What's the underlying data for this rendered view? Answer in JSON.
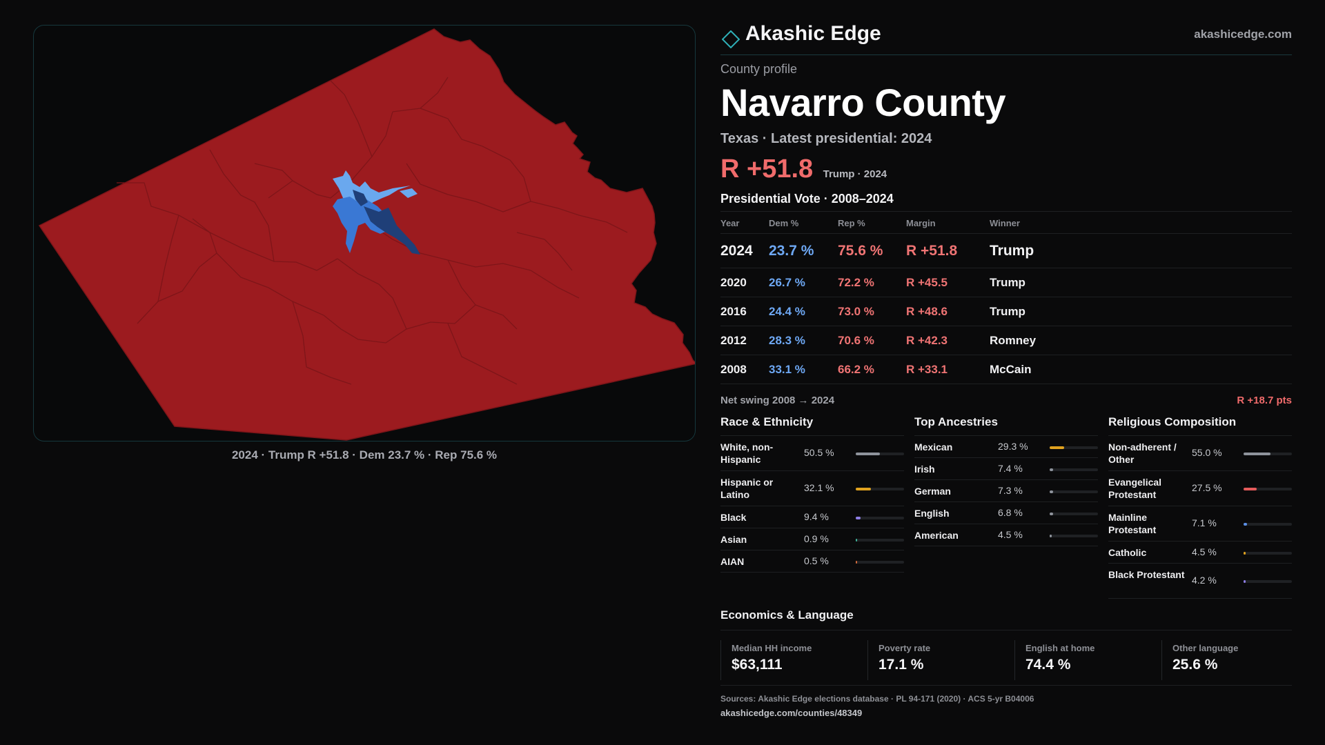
{
  "brand": {
    "name": "Akashic Edge",
    "site": "akashicedge.com"
  },
  "map": {
    "caption": "2024 · Trump R +51.8 · Dem 23.7 % · Rep 75.6 %",
    "colors": {
      "rep": "#9c1b1f",
      "dem_light": "#6aa8ee",
      "dem_mid": "#3a78d4",
      "dem_dark": "#1f3f78",
      "border": "#7e1519"
    }
  },
  "profile": {
    "eyebrow": "County profile",
    "county": "Navarro County",
    "subline": "Texas · Latest presidential: 2024",
    "margin": "R +51.8",
    "margin_sub": "Trump · 2024"
  },
  "votes": {
    "title": "Presidential Vote · 2008–2024",
    "headers": {
      "year": "Year",
      "dem": "Dem %",
      "rep": "Rep %",
      "margin": "Margin",
      "winner": "Winner"
    },
    "rows": [
      {
        "year": "2024",
        "dem": "23.7 %",
        "rep": "75.6 %",
        "margin": "R +51.8",
        "winner": "Trump"
      },
      {
        "year": "2020",
        "dem": "26.7 %",
        "rep": "72.2 %",
        "margin": "R +45.5",
        "winner": "Trump"
      },
      {
        "year": "2016",
        "dem": "24.4 %",
        "rep": "73.0 %",
        "margin": "R +48.6",
        "winner": "Trump"
      },
      {
        "year": "2012",
        "dem": "28.3 %",
        "rep": "70.6 %",
        "margin": "R +42.3",
        "winner": "Romney"
      },
      {
        "year": "2008",
        "dem": "33.1 %",
        "rep": "66.2 %",
        "margin": "R +33.1",
        "winner": "McCain"
      }
    ],
    "swing_label": "Net swing 2008 → 2024",
    "swing_value": "R +18.7 pts"
  },
  "race": {
    "title": "Race & Ethnicity",
    "items": [
      {
        "label": "White, non-Hispanic",
        "value": "50.5 %",
        "pct": 50.5,
        "color": "#8e939c"
      },
      {
        "label": "Hispanic or Latino",
        "value": "32.1 %",
        "pct": 32.1,
        "color": "#e0a21f"
      },
      {
        "label": "Black",
        "value": "9.4 %",
        "pct": 9.4,
        "color": "#8e7ee6"
      },
      {
        "label": "Asian",
        "value": "0.9 %",
        "pct": 0.9,
        "color": "#3fb39a"
      },
      {
        "label": "AIAN",
        "value": "0.5 %",
        "pct": 0.5,
        "color": "#d2693a"
      }
    ]
  },
  "ancestry": {
    "title": "Top Ancestries",
    "items": [
      {
        "label": "Mexican",
        "value": "29.3 %",
        "pct": 29.3,
        "color": "#e0a21f"
      },
      {
        "label": "Irish",
        "value": "7.4 %",
        "pct": 7.4,
        "color": "#8e939c"
      },
      {
        "label": "German",
        "value": "7.3 %",
        "pct": 7.3,
        "color": "#8e939c"
      },
      {
        "label": "English",
        "value": "6.8 %",
        "pct": 6.8,
        "color": "#8e939c"
      },
      {
        "label": "American",
        "value": "4.5 %",
        "pct": 4.5,
        "color": "#8e939c"
      }
    ]
  },
  "religion": {
    "title": "Religious Composition",
    "items": [
      {
        "label": "Non-adherent / Other",
        "value": "55.0 %",
        "pct": 55.0,
        "color": "#8e939c"
      },
      {
        "label": "Evangelical Protestant",
        "value": "27.5 %",
        "pct": 27.5,
        "color": "#e45b5b"
      },
      {
        "label": "Mainline Protestant",
        "value": "7.1 %",
        "pct": 7.1,
        "color": "#5b8fe6"
      },
      {
        "label": "Catholic",
        "value": "4.5 %",
        "pct": 4.5,
        "color": "#e0a21f"
      },
      {
        "label": "Black Protestant",
        "value": "4.2 %",
        "pct": 4.2,
        "color": "#8e7ee6"
      }
    ]
  },
  "economics": {
    "title": "Economics & Language",
    "items": [
      {
        "label": "Median HH income",
        "value": "$63,111"
      },
      {
        "label": "Poverty rate",
        "value": "17.1 %"
      },
      {
        "label": "English at home",
        "value": "74.4 %"
      },
      {
        "label": "Other language",
        "value": "25.6 %"
      }
    ]
  },
  "footer": {
    "sources": "Sources: Akashic Edge elections database · PL 94-171 (2020) · ACS 5-yr B04006",
    "url": "akashicedge.com/counties/48349"
  }
}
